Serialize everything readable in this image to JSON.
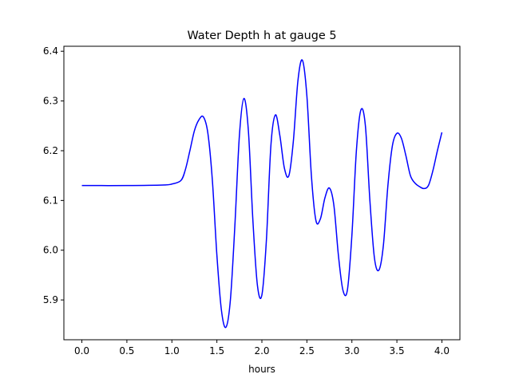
{
  "chart_data": {
    "type": "line",
    "title": "Water Depth h at gauge 5",
    "xlabel": "hours",
    "ylabel": "",
    "xlim": [
      -0.2,
      4.2
    ],
    "ylim": [
      5.82,
      6.41
    ],
    "grid": false,
    "x_ticks": [
      "0.0",
      "0.5",
      "1.0",
      "1.5",
      "2.0",
      "2.5",
      "3.0",
      "3.5",
      "4.0"
    ],
    "y_ticks": [
      "5.9",
      "6.0",
      "6.1",
      "6.2",
      "6.3",
      "6.4"
    ],
    "series": [
      {
        "color": "#0000ff",
        "x": [
          0.0,
          0.5,
          0.9,
          1.0,
          1.1,
          1.15,
          1.2,
          1.25,
          1.3,
          1.35,
          1.4,
          1.45,
          1.5,
          1.55,
          1.6,
          1.65,
          1.7,
          1.75,
          1.8,
          1.85,
          1.9,
          1.95,
          2.0,
          2.05,
          2.1,
          2.15,
          2.2,
          2.25,
          2.3,
          2.35,
          2.4,
          2.45,
          2.5,
          2.55,
          2.6,
          2.65,
          2.7,
          2.75,
          2.8,
          2.85,
          2.9,
          2.95,
          3.0,
          3.05,
          3.1,
          3.15,
          3.2,
          3.25,
          3.3,
          3.35,
          3.4,
          3.45,
          3.5,
          3.55,
          3.6,
          3.65,
          3.7,
          3.75,
          3.8,
          3.85,
          3.9,
          3.95,
          4.0
        ],
        "y": [
          6.13,
          6.13,
          6.131,
          6.133,
          6.14,
          6.162,
          6.2,
          6.24,
          6.262,
          6.268,
          6.235,
          6.14,
          5.99,
          5.88,
          5.845,
          5.9,
          6.05,
          6.23,
          6.305,
          6.24,
          6.06,
          5.93,
          5.91,
          6.02,
          6.21,
          6.272,
          6.23,
          6.165,
          6.15,
          6.22,
          6.34,
          6.382,
          6.31,
          6.15,
          6.06,
          6.063,
          6.105,
          6.125,
          6.09,
          5.99,
          5.92,
          5.92,
          6.03,
          6.2,
          6.282,
          6.25,
          6.1,
          5.985,
          5.96,
          6.01,
          6.13,
          6.21,
          6.235,
          6.225,
          6.19,
          6.15,
          6.135,
          6.128,
          6.124,
          6.13,
          6.16,
          6.2,
          6.237
        ]
      }
    ]
  }
}
